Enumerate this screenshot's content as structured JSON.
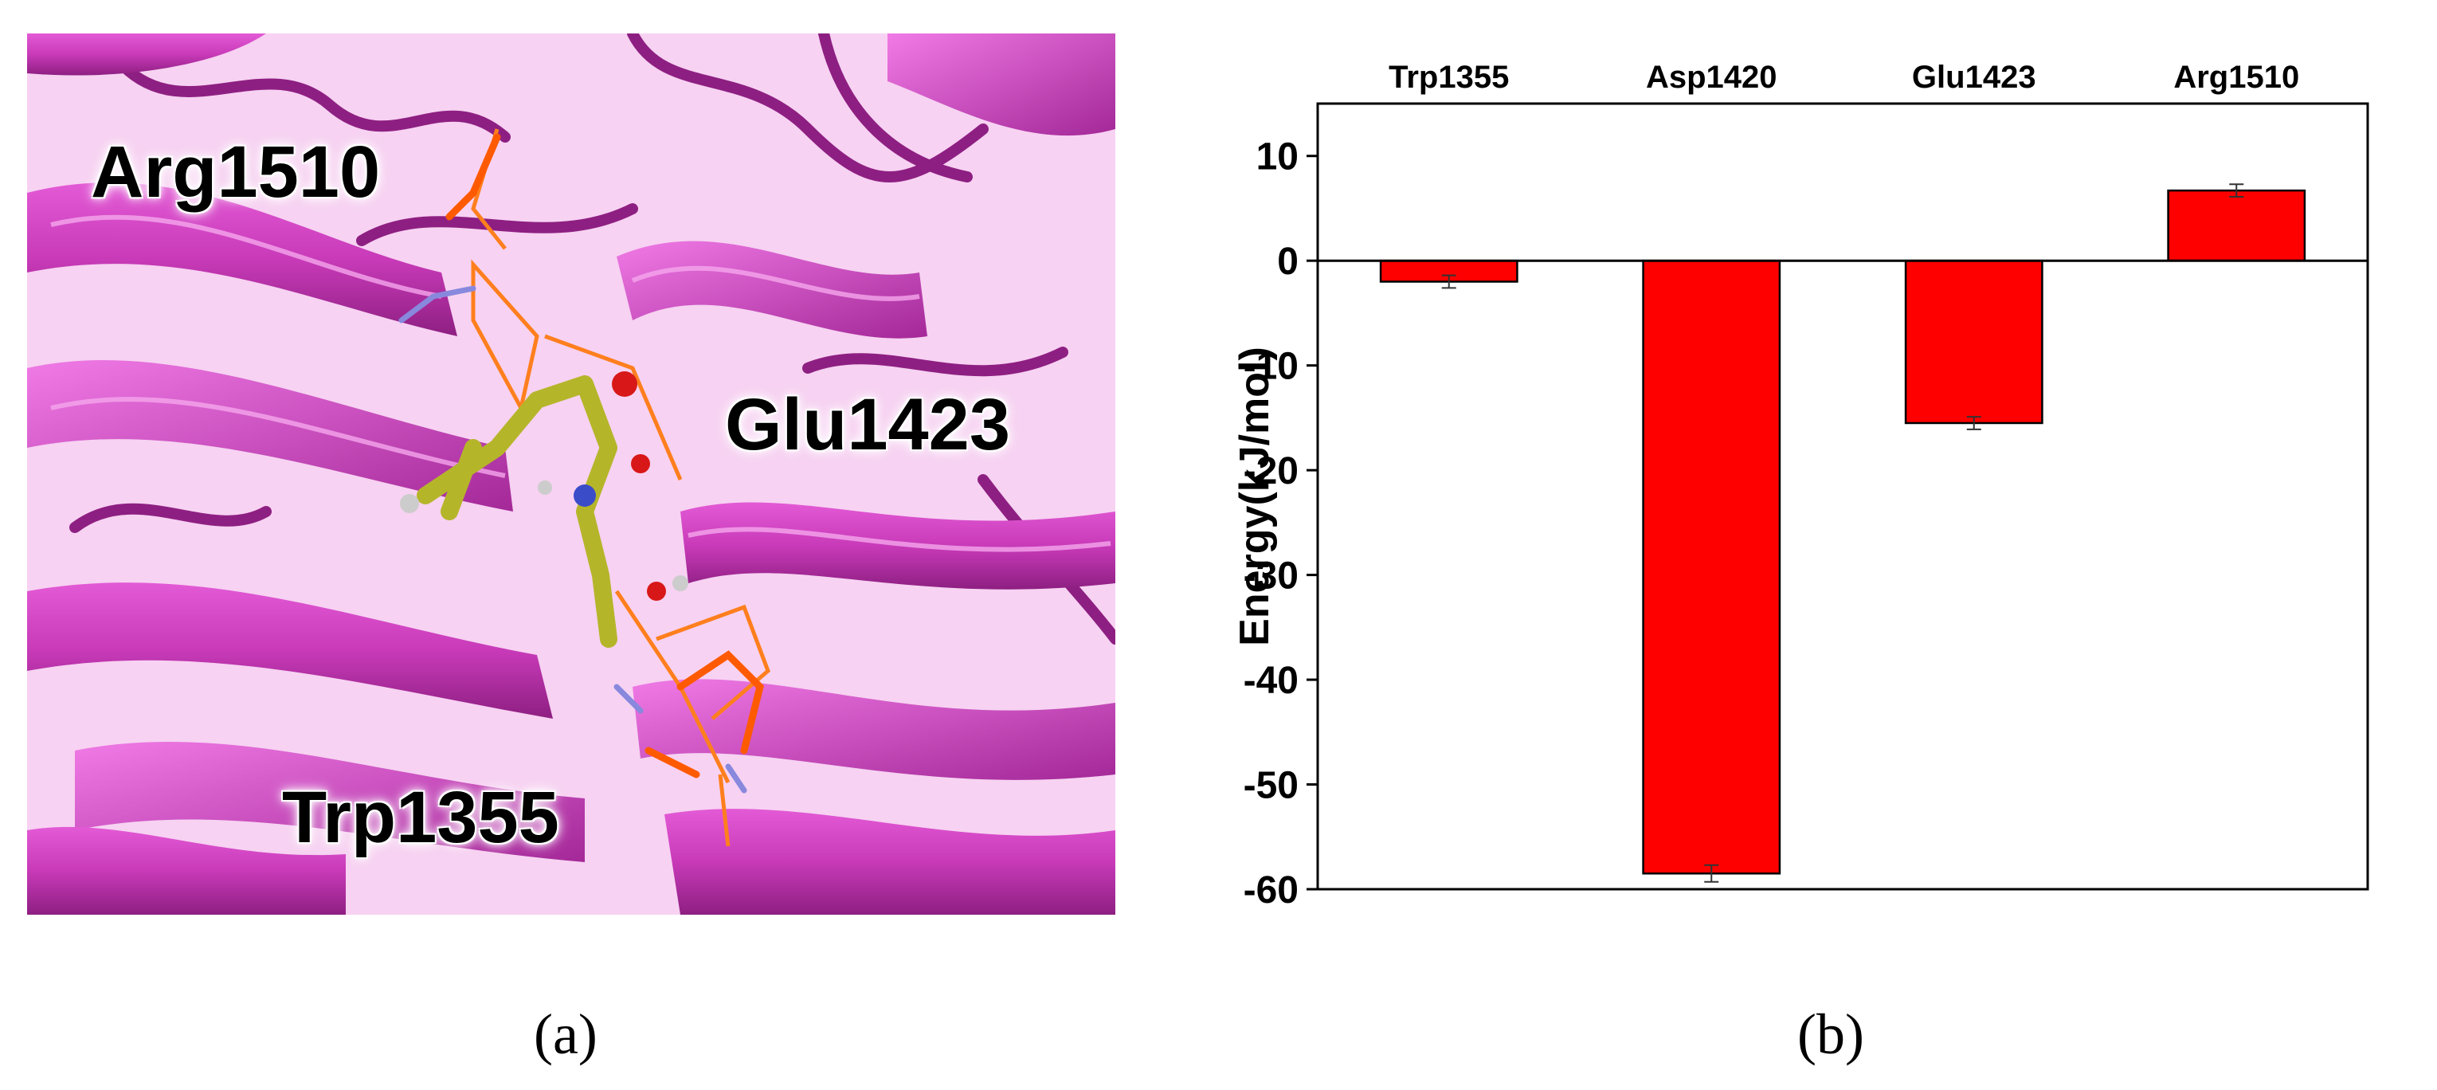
{
  "panel_a": {
    "labels": {
      "arg": "Arg1510",
      "glu": "Glu1423",
      "trp": "Trp1355"
    },
    "ribbon_color": "#d63fc6",
    "ligand_color": "#b5b52a",
    "interaction_color": "#ff7f1e"
  },
  "captions": {
    "a": "(a)",
    "b": "(b)"
  },
  "chart_data": {
    "type": "bar",
    "categories": [
      "Trp1355",
      "Asp1420",
      "Glu1423",
      "Arg1510"
    ],
    "values": [
      -2.0,
      -58.5,
      -15.5,
      6.7
    ],
    "errors": [
      0.6,
      0.8,
      0.6,
      0.6
    ],
    "title": "",
    "xlabel": "",
    "ylabel": "Energy(kJ/mol)",
    "ylim": [
      -60,
      15
    ],
    "yticks": [
      10,
      0,
      -10,
      -20,
      -30,
      -40,
      -50,
      -60
    ],
    "category_labels_position": "top",
    "bar_color": "#ff0000",
    "grid": false
  }
}
